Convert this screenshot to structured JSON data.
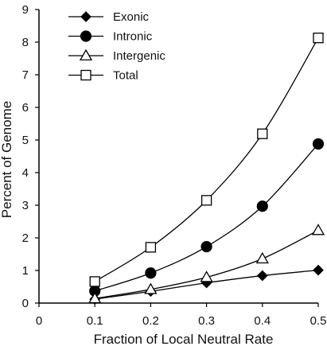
{
  "chart_data": {
    "type": "line",
    "xlabel": "Fraction of Local Neutral Rate",
    "ylabel": "Percent of Genome",
    "xlim": [
      0,
      0.5
    ],
    "ylim": [
      0,
      9
    ],
    "x_ticks": [
      "0",
      "0.1",
      "0.2",
      "0.3",
      "0.4",
      "0.5"
    ],
    "y_ticks": [
      "0",
      "1",
      "2",
      "3",
      "4",
      "5",
      "6",
      "7",
      "8",
      "9"
    ],
    "x": [
      0.1,
      0.2,
      0.3,
      0.4,
      0.5
    ],
    "legend_position": "top-left",
    "grid": false,
    "series": [
      {
        "name": "Exonic",
        "marker": "diamond",
        "fill": "#000000",
        "values": [
          0.12,
          0.36,
          0.62,
          0.84,
          1.01
        ]
      },
      {
        "name": "Intronic",
        "marker": "circle",
        "fill": "#000000",
        "values": [
          0.37,
          0.92,
          1.73,
          2.97,
          4.88
        ]
      },
      {
        "name": "Intergenic",
        "marker": "triangle",
        "fill": "#ffffff",
        "values": [
          0.14,
          0.42,
          0.79,
          1.36,
          2.23
        ]
      },
      {
        "name": "Total",
        "marker": "square",
        "fill": "#ffffff",
        "values": [
          0.66,
          1.71,
          3.15,
          5.19,
          8.13
        ]
      }
    ]
  }
}
